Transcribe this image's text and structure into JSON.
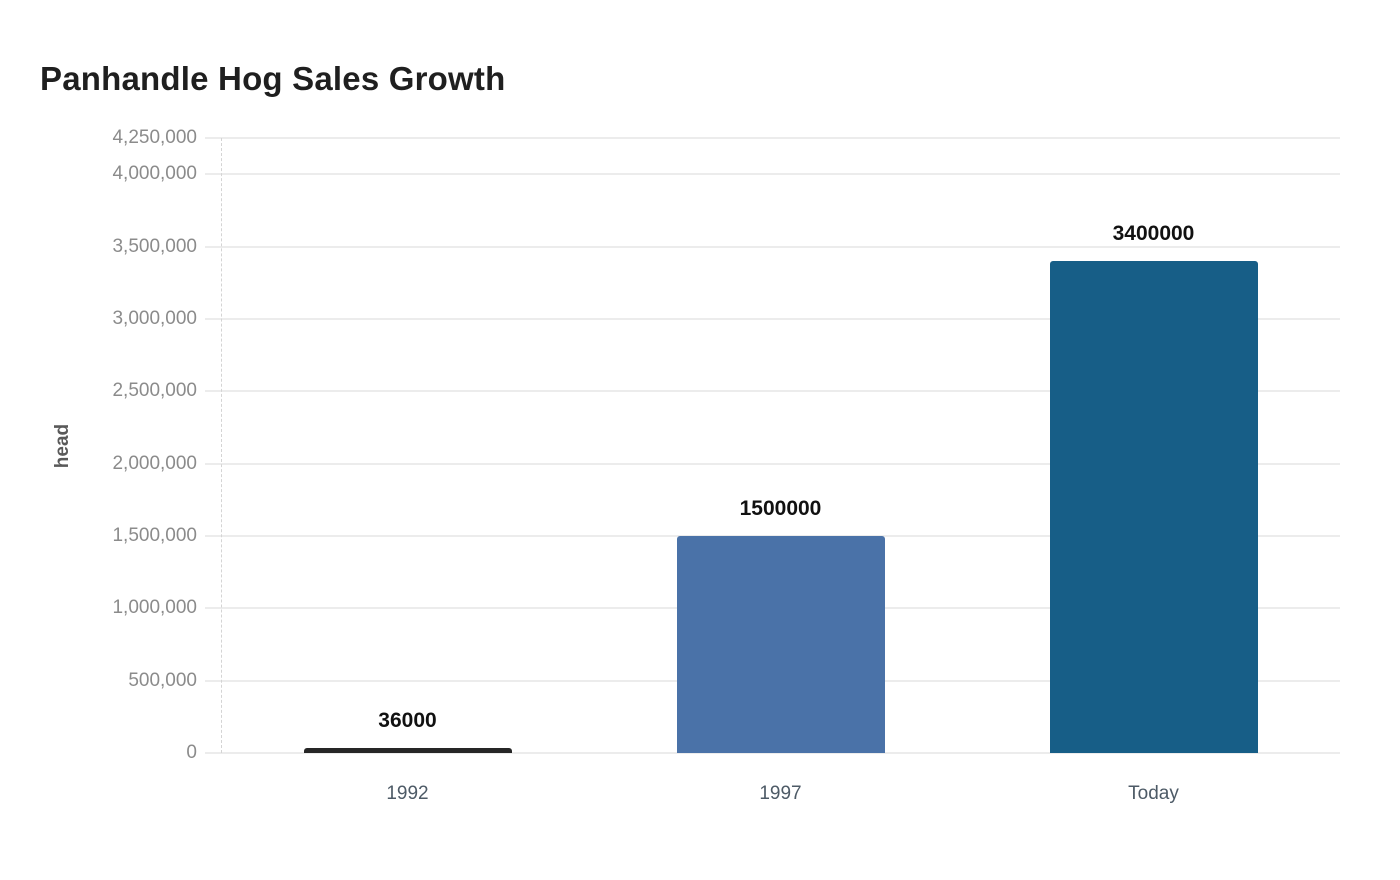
{
  "title": "Panhandle Hog Sales Growth",
  "chart_data": {
    "type": "bar",
    "title": "Panhandle Hog Sales Growth",
    "categories": [
      "1992",
      "1997",
      "Today"
    ],
    "values": [
      36000,
      1500000,
      3400000
    ],
    "value_labels": [
      "36000",
      "1500000",
      "3400000"
    ],
    "bar_colors": [
      "#262626",
      "#4a72a8",
      "#175e87"
    ],
    "xlabel": "",
    "ylabel": "head",
    "ylim": [
      0,
      4250000
    ],
    "yticks": [
      {
        "value": 0,
        "label": "0"
      },
      {
        "value": 500000,
        "label": "500,000"
      },
      {
        "value": 1000000,
        "label": "1,000,000"
      },
      {
        "value": 1500000,
        "label": "1,500,000"
      },
      {
        "value": 2000000,
        "label": "2,000,000"
      },
      {
        "value": 2500000,
        "label": "2,500,000"
      },
      {
        "value": 3000000,
        "label": "3,000,000"
      },
      {
        "value": 3500000,
        "label": "3,500,000"
      },
      {
        "value": 4000000,
        "label": "4,000,000"
      },
      {
        "value": 4250000,
        "label": "4,250,000"
      }
    ],
    "grid": true,
    "legend": "none",
    "colors": {
      "background": "#ffffff",
      "title": "#1f1f1f",
      "grid": "#ececec",
      "axis_line": "#d4d4d4",
      "ytick_label": "#8b8b8b",
      "xtick_label": "#4d5a66",
      "value_label": "#111111",
      "ylabel": "#595959"
    }
  }
}
